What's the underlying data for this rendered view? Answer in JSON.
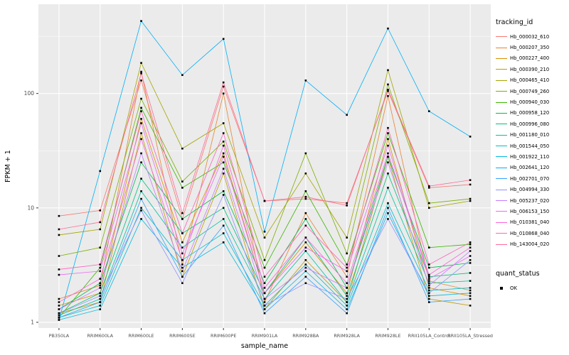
{
  "chart_data": {
    "type": "line",
    "title": "",
    "xlabel": "sample_name",
    "ylabel": "FPKM + 1",
    "y_scale": "log10",
    "y_ticks": [
      1,
      10,
      100
    ],
    "ylim": [
      0.9,
      560
    ],
    "grid": true,
    "panel_bg": "#EBEBEB",
    "grid_color": "#FFFFFF",
    "point_color": "#000000",
    "legend_position": "right",
    "legend_title": "tracking_id",
    "quant_legend": {
      "title": "quant_status",
      "items": [
        {
          "label": "OK",
          "color": "#000000"
        }
      ]
    },
    "categories": [
      "PB350LA",
      "RRIM600LA",
      "RRIM600LE",
      "RRIM600SE",
      "RRIM600PE",
      "RRIM901LA",
      "RRIM928BA",
      "RRIM928LA",
      "RRIM928LE",
      "RRII105LA_Control",
      "RRII105LA_Stressed"
    ],
    "series": [
      {
        "name": "Hb_000032_610",
        "color": "#F8766D",
        "values": [
          8.5,
          9.5,
          130,
          8.0,
          115,
          11.5,
          12.0,
          11.0,
          105,
          15.0,
          16.0
        ]
      },
      {
        "name": "Hb_000207_350",
        "color": "#EA8331",
        "values": [
          1.6,
          2.1,
          155,
          3.2,
          100,
          1.5,
          9.0,
          2.5,
          95,
          2.3,
          1.9
        ]
      },
      {
        "name": "Hb_000227_400",
        "color": "#D89000",
        "values": [
          1.4,
          1.8,
          60,
          5.0,
          30,
          1.8,
          5.0,
          1.8,
          40,
          2.0,
          1.7
        ]
      },
      {
        "name": "Hb_000390_210",
        "color": "#C09B00",
        "values": [
          1.2,
          1.5,
          45,
          2.5,
          20,
          1.3,
          3.5,
          1.5,
          28,
          1.6,
          1.4
        ]
      },
      {
        "name": "Hb_000465_410",
        "color": "#A3A500",
        "values": [
          5.8,
          6.5,
          185,
          33,
          55,
          5.5,
          20,
          5.5,
          160,
          10,
          11.5
        ]
      },
      {
        "name": "Hb_000749_260",
        "color": "#7CAE00",
        "values": [
          3.8,
          4.5,
          90,
          17,
          38,
          3.5,
          30,
          4.0,
          120,
          11,
          12
        ]
      },
      {
        "name": "Hb_000940_030",
        "color": "#39B600",
        "values": [
          1.1,
          3.0,
          75,
          15,
          25,
          3.0,
          14,
          3.2,
          45,
          4.5,
          4.8
        ]
      },
      {
        "name": "Hb_000958_120",
        "color": "#00BB4E",
        "values": [
          1.3,
          2.2,
          25,
          8.0,
          14,
          2.2,
          8.0,
          2.0,
          28,
          3.0,
          3.3
        ]
      },
      {
        "name": "Hb_000996_080",
        "color": "#00BF7D",
        "values": [
          1.2,
          1.8,
          18,
          6.0,
          10,
          1.8,
          5.5,
          1.7,
          20,
          2.5,
          2.7
        ]
      },
      {
        "name": "Hb_001180_010",
        "color": "#00C1A3",
        "values": [
          1.15,
          1.6,
          14,
          4.5,
          8.0,
          1.6,
          4.2,
          1.5,
          15,
          2.2,
          2.3
        ]
      },
      {
        "name": "Hb_001544_050",
        "color": "#00BFC4",
        "values": [
          1.1,
          1.4,
          10,
          3.5,
          6.0,
          1.4,
          3.2,
          1.4,
          11,
          1.9,
          2.0
        ]
      },
      {
        "name": "Hb_001922_110",
        "color": "#00BAE0",
        "values": [
          1.05,
          1.3,
          8.0,
          3.0,
          5.0,
          1.3,
          2.8,
          1.3,
          9.0,
          1.7,
          1.8
        ]
      },
      {
        "name": "Hb_002641_120",
        "color": "#00B0F6",
        "values": [
          1.05,
          21,
          430,
          145,
          300,
          6.2,
          130,
          65,
          370,
          70,
          42
        ]
      },
      {
        "name": "Hb_002701_070",
        "color": "#35A2FF",
        "values": [
          1.1,
          1.5,
          12,
          2.5,
          7.0,
          1.2,
          2.5,
          1.2,
          10,
          1.5,
          1.6
        ]
      },
      {
        "name": "Hb_004994_330",
        "color": "#9590FF",
        "values": [
          1.2,
          1.7,
          9.5,
          2.2,
          13,
          1.4,
          2.2,
          1.6,
          8.0,
          1.8,
          3.5
        ]
      },
      {
        "name": "Hb_005237_020",
        "color": "#C77CFF",
        "values": [
          1.3,
          2.0,
          30,
          2.8,
          22,
          1.6,
          3.0,
          2.0,
          25,
          2.1,
          4.2
        ]
      },
      {
        "name": "Hb_006153_150",
        "color": "#E76BF3",
        "values": [
          2.6,
          2.8,
          55,
          4.0,
          28,
          1.8,
          4.5,
          2.8,
          35,
          2.4,
          3.8
        ]
      },
      {
        "name": "Hb_010381_040",
        "color": "#FA62DB",
        "values": [
          1.5,
          2.4,
          40,
          3.5,
          35,
          2.0,
          5.5,
          2.2,
          30,
          2.6,
          4.5
        ]
      },
      {
        "name": "Hb_010868_040",
        "color": "#FF62BC",
        "values": [
          2.9,
          3.2,
          70,
          6.0,
          45,
          2.5,
          7.0,
          3.0,
          50,
          3.2,
          5.0
        ]
      },
      {
        "name": "Hb_143004_020",
        "color": "#FF6A98",
        "values": [
          6.5,
          7.5,
          150,
          9.0,
          125,
          11.5,
          12.5,
          10.5,
          108,
          15.5,
          17.5
        ]
      }
    ]
  }
}
